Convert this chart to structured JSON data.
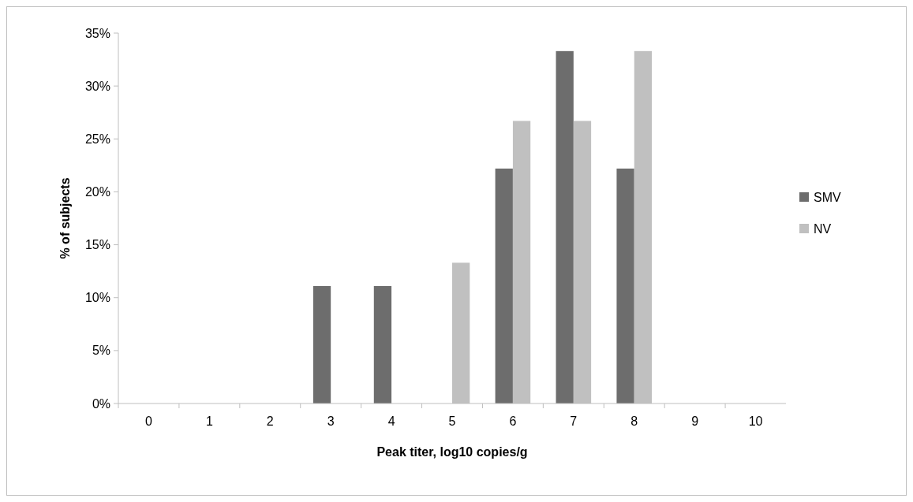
{
  "chart_data": {
    "type": "bar",
    "xlabel": "Peak titer, log10 copies/g",
    "ylabel": "% of subjects",
    "categories": [
      "0",
      "1",
      "2",
      "3",
      "4",
      "5",
      "6",
      "7",
      "8",
      "9",
      "10"
    ],
    "series": [
      {
        "name": "SMV",
        "color": "#6d6d6d",
        "values": [
          0,
          0,
          0,
          11.1,
          11.1,
          0,
          22.2,
          33.3,
          22.2,
          0,
          0
        ]
      },
      {
        "name": "NV",
        "color": "#c0c0c0",
        "values": [
          0,
          0,
          0,
          0,
          0,
          13.3,
          26.7,
          26.7,
          33.3,
          0,
          0
        ]
      }
    ],
    "ylim": [
      0,
      35
    ],
    "yticks": [
      {
        "value": 0,
        "label": "0%"
      },
      {
        "value": 5,
        "label": "5%"
      },
      {
        "value": 10,
        "label": "10%"
      },
      {
        "value": 15,
        "label": "15%"
      },
      {
        "value": 20,
        "label": "20%"
      },
      {
        "value": 25,
        "label": "25%"
      },
      {
        "value": 30,
        "label": "30%"
      },
      {
        "value": 35,
        "label": "35%"
      }
    ],
    "grid": false,
    "legend": "right"
  }
}
